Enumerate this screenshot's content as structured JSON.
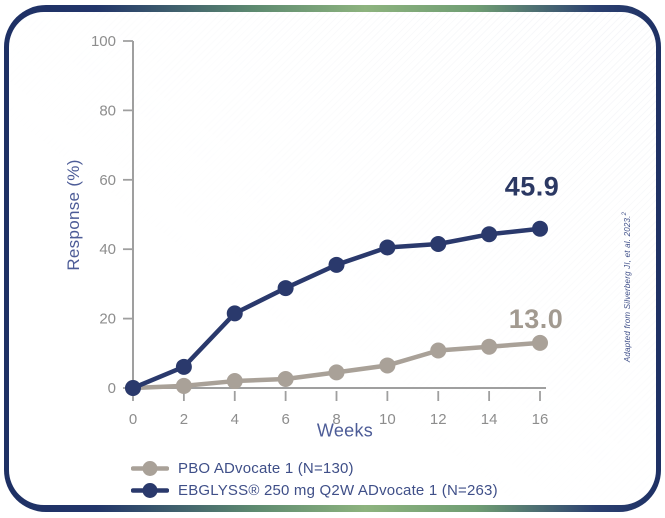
{
  "card": {
    "border_colors": {
      "navy": "#1e3064",
      "green": "#8db37e"
    }
  },
  "chart_data": {
    "type": "line",
    "title": "",
    "xlabel": "Weeks",
    "ylabel": "Response (%)",
    "x": [
      0,
      2,
      4,
      6,
      8,
      10,
      12,
      14,
      16
    ],
    "xticks": [
      0,
      2,
      4,
      6,
      8,
      10,
      12,
      14,
      16
    ],
    "yticks": [
      0,
      20,
      40,
      60,
      80,
      100
    ],
    "xlim": [
      0,
      16
    ],
    "ylim": [
      0,
      100
    ],
    "grid": false,
    "legend_position": "bottom-left",
    "axis_color": "#9f9f9f",
    "tick_label_color": "#8d8d8d",
    "series": [
      {
        "name": "pbo",
        "legend": "PBO ADvocate 1 (N=130)",
        "color": "#a9a198",
        "end_label": "13.0",
        "end_label_color": "#a29a90",
        "values": [
          0,
          0.6,
          2.0,
          2.6,
          4.5,
          6.5,
          10.8,
          11.9,
          13.0
        ]
      },
      {
        "name": "ebglyss",
        "legend": "EBGLYSS® 250 mg Q2W ADvocate 1 (N=263)",
        "color": "#2a396c",
        "end_label": "45.9",
        "end_label_color": "#2b3863",
        "values": [
          0,
          6.1,
          21.5,
          28.8,
          35.5,
          40.5,
          41.5,
          44.3,
          45.9
        ]
      }
    ]
  },
  "citation": {
    "text": "Adapted from Silverberg JI, et al. 2023.",
    "superscript": "2"
  }
}
